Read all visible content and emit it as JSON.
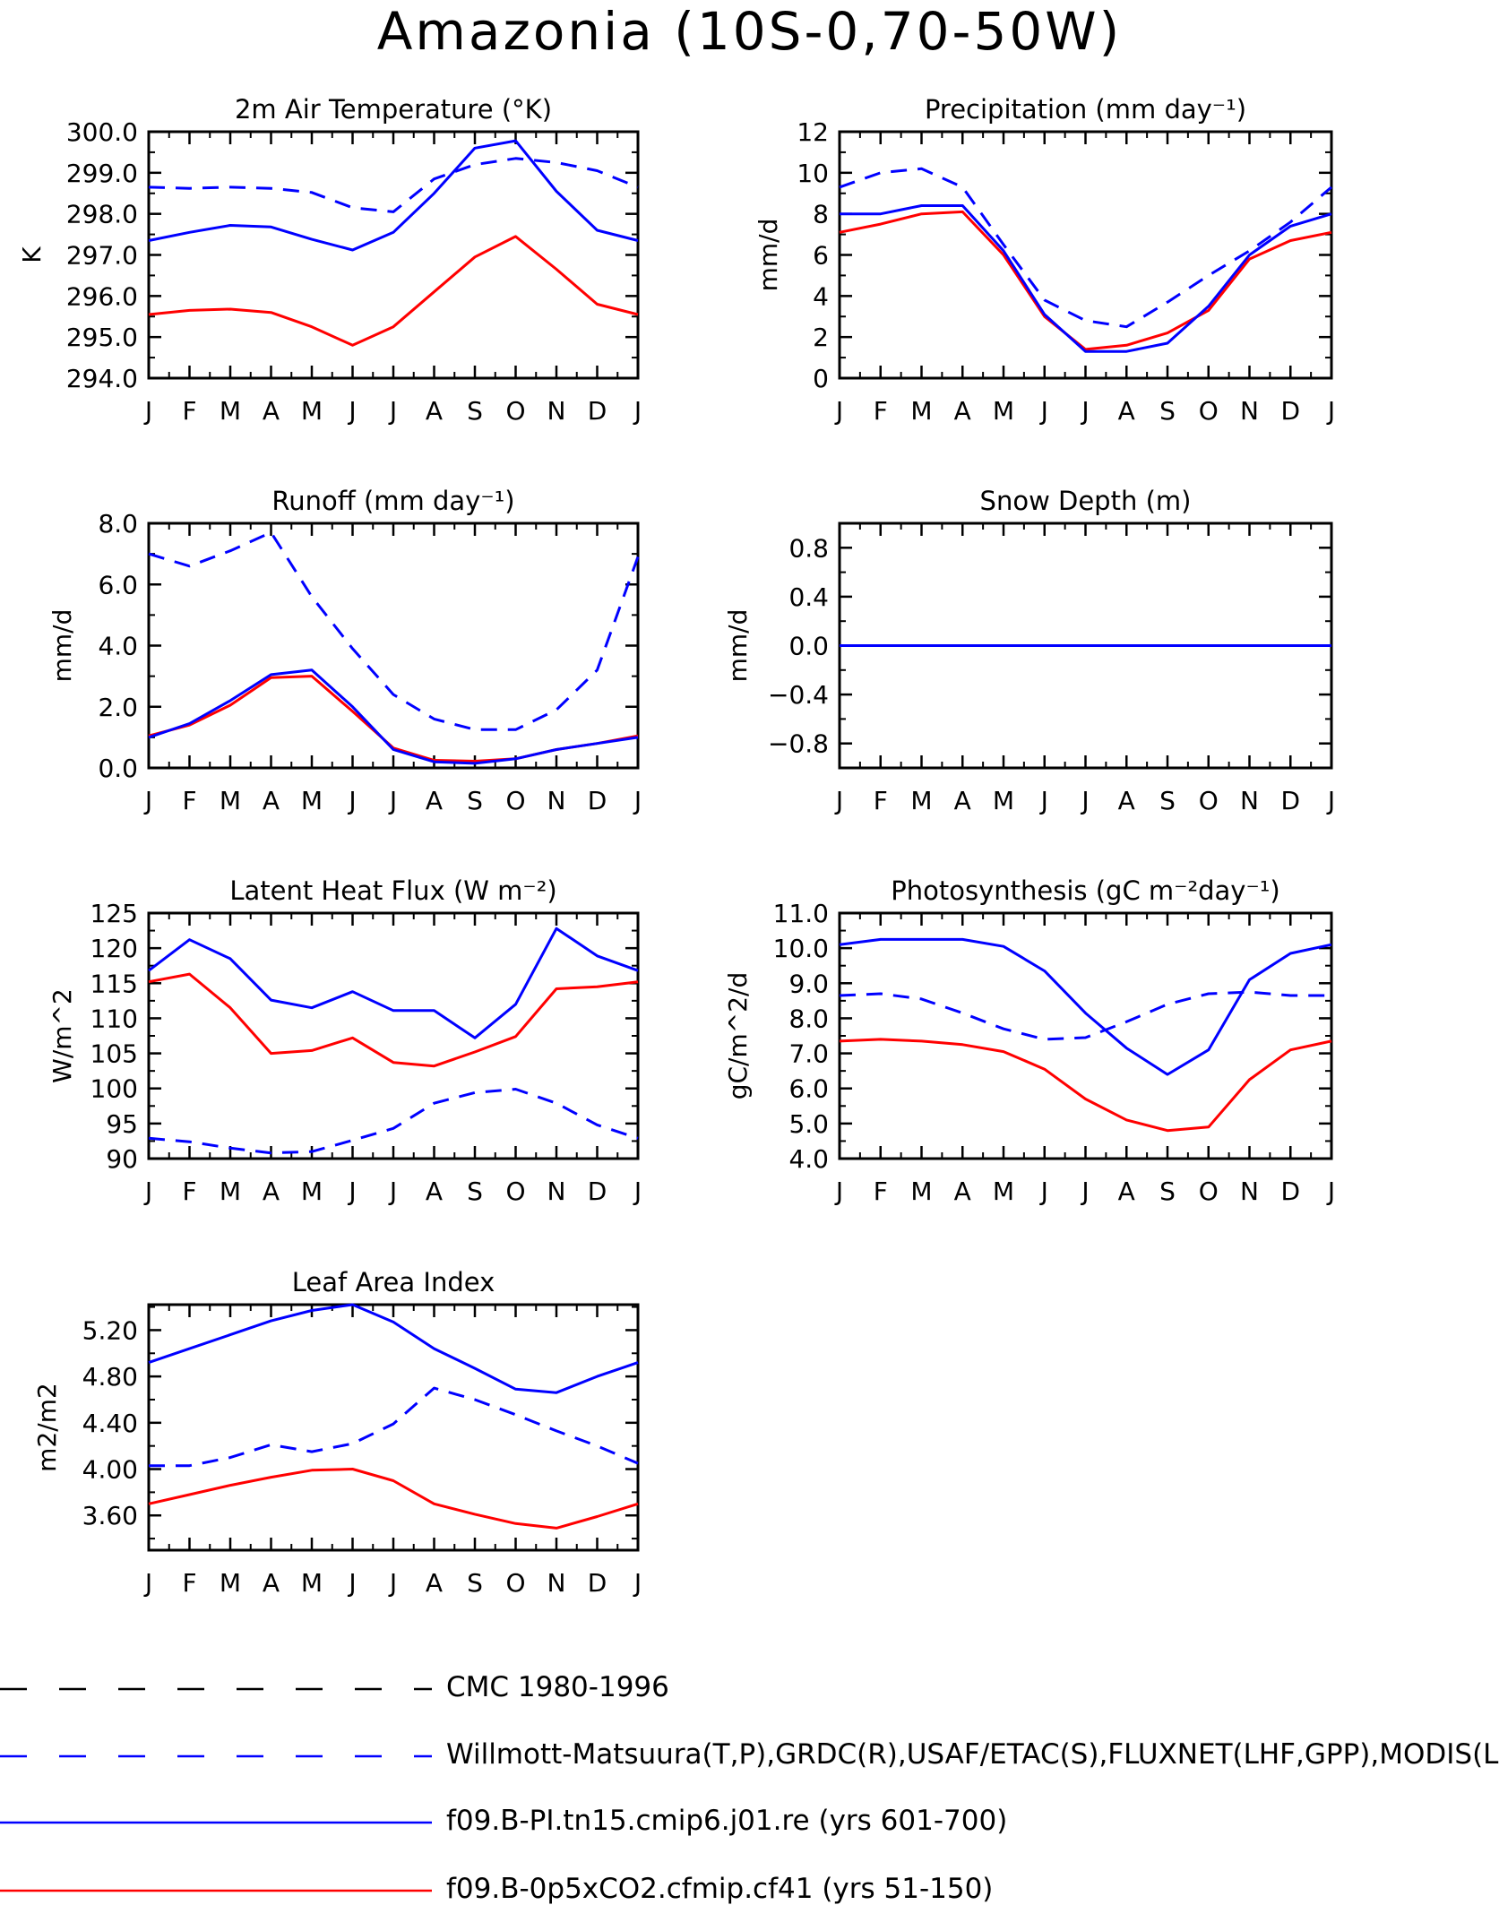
{
  "title": "Amazonia (10S-0,70-50W)",
  "months": [
    "J",
    "F",
    "M",
    "A",
    "M",
    "J",
    "J",
    "A",
    "S",
    "O",
    "N",
    "D",
    "J"
  ],
  "colors": {
    "red": "#ff0000",
    "blue": "#0000ff",
    "black": "#000000"
  },
  "legend": [
    {
      "label": "CMC 1980-1996",
      "color": "#000000",
      "dash": true
    },
    {
      "label": "Willmott-Matsuura(T,P),GRDC(R),USAF/ETAC(S),FLUXNET(LHF,GPP),MODIS(L",
      "color": "#0000ff",
      "dash": true
    },
    {
      "label": "f09.B-PI.tn15.cmip6.j01.re (yrs 601-700)",
      "color": "#0000ff",
      "dash": false
    },
    {
      "label": "f09.B-0p5xCO2.cfmip.cf41 (yrs 51-150)",
      "color": "#ff0000",
      "dash": false
    }
  ],
  "chart_data": [
    {
      "type": "line",
      "title": "2m Air Temperature (°K)",
      "ylabel": "K",
      "ylim": [
        294,
        300
      ],
      "yticks": [
        294,
        295,
        296,
        297,
        298,
        299,
        300
      ],
      "ytick_labels": [
        "294.0",
        "295.0",
        "296.0",
        "297.0",
        "298.0",
        "299.0",
        "300.0"
      ],
      "categories": [
        "J",
        "F",
        "M",
        "A",
        "M",
        "J",
        "J",
        "A",
        "S",
        "O",
        "N",
        "D",
        "J"
      ],
      "series": [
        {
          "name": "f09.B-0p5xCO2.cfmip.cf41 (yrs 51-150)",
          "color": "#ff0000",
          "dash": false,
          "values": [
            295.55,
            295.65,
            295.68,
            295.6,
            295.25,
            294.8,
            295.25,
            296.1,
            296.95,
            297.45,
            296.65,
            295.8,
            295.55
          ]
        },
        {
          "name": "f09.B-PI.tn15.cmip6.j01.re (yrs 601-700)",
          "color": "#0000ff",
          "dash": false,
          "values": [
            297.35,
            297.55,
            297.72,
            297.68,
            297.38,
            297.12,
            297.55,
            298.5,
            299.6,
            299.78,
            298.55,
            297.6,
            297.35
          ]
        },
        {
          "name": "Willmott-Matsuura(T,P),GRDC(R),USAF/ETAC(S),FLUXNET(LHF,GPP),MODIS(L",
          "color": "#0000ff",
          "dash": true,
          "values": [
            298.65,
            298.62,
            298.65,
            298.62,
            298.52,
            298.15,
            298.05,
            298.85,
            299.2,
            299.35,
            299.25,
            299.05,
            298.65
          ]
        }
      ]
    },
    {
      "type": "line",
      "title": "Precipitation (mm day⁻¹)",
      "ylabel": "mm/d",
      "ylim": [
        0,
        12
      ],
      "yticks": [
        0,
        2,
        4,
        6,
        8,
        10,
        12
      ],
      "ytick_labels": [
        "0",
        "2",
        "4",
        "6",
        "8",
        "10",
        "12"
      ],
      "categories": [
        "J",
        "F",
        "M",
        "A",
        "M",
        "J",
        "J",
        "A",
        "S",
        "O",
        "N",
        "D",
        "J"
      ],
      "series": [
        {
          "name": "f09.B-0p5xCO2.cfmip.cf41 (yrs 51-150)",
          "color": "#ff0000",
          "dash": false,
          "values": [
            7.1,
            7.5,
            8.0,
            8.1,
            6.0,
            3.0,
            1.4,
            1.6,
            2.2,
            3.3,
            5.8,
            6.7,
            7.1
          ]
        },
        {
          "name": "f09.B-PI.tn15.cmip6.j01.re (yrs 601-700)",
          "color": "#0000ff",
          "dash": false,
          "values": [
            8.0,
            8.0,
            8.4,
            8.4,
            6.2,
            3.1,
            1.3,
            1.3,
            1.7,
            3.5,
            6.0,
            7.4,
            8.0
          ]
        },
        {
          "name": "Willmott-Matsuura(T,P),GRDC(R),USAF/ETAC(S),FLUXNET(LHF,GPP),MODIS(L",
          "color": "#0000ff",
          "dash": true,
          "values": [
            9.3,
            10.0,
            10.2,
            9.3,
            6.5,
            3.8,
            2.8,
            2.5,
            3.7,
            5.0,
            6.2,
            7.6,
            9.3
          ]
        }
      ]
    },
    {
      "type": "line",
      "title": "Runoff (mm day⁻¹)",
      "ylabel": "mm/d",
      "ylim": [
        0,
        8
      ],
      "yticks": [
        0,
        2,
        4,
        6,
        8
      ],
      "ytick_labels": [
        "0.0",
        "2.0",
        "4.0",
        "6.0",
        "8.0"
      ],
      "categories": [
        "J",
        "F",
        "M",
        "A",
        "M",
        "J",
        "J",
        "A",
        "S",
        "O",
        "N",
        "D",
        "J"
      ],
      "series": [
        {
          "name": "f09.B-0p5xCO2.cfmip.cf41 (yrs 51-150)",
          "color": "#ff0000",
          "dash": false,
          "values": [
            1.05,
            1.4,
            2.05,
            2.95,
            3.0,
            1.85,
            0.65,
            0.25,
            0.22,
            0.3,
            0.6,
            0.8,
            1.05
          ]
        },
        {
          "name": "f09.B-PI.tn15.cmip6.j01.re (yrs 601-700)",
          "color": "#0000ff",
          "dash": false,
          "values": [
            1.0,
            1.45,
            2.2,
            3.05,
            3.2,
            2.0,
            0.6,
            0.2,
            0.15,
            0.3,
            0.6,
            0.8,
            1.0
          ]
        },
        {
          "name": "Willmott-Matsuura(T,P),GRDC(R),USAF/ETAC(S),FLUXNET(LHF,GPP),MODIS(L",
          "color": "#0000ff",
          "dash": true,
          "values": [
            7.0,
            6.6,
            7.1,
            7.7,
            5.6,
            3.9,
            2.4,
            1.6,
            1.25,
            1.25,
            1.9,
            3.2,
            6.9
          ]
        }
      ]
    },
    {
      "type": "line",
      "title": "Snow Depth (m)",
      "ylabel": "mm/d",
      "ylim": [
        -1,
        1
      ],
      "yticks": [
        -0.8,
        -0.4,
        0,
        0.4,
        0.8
      ],
      "ytick_labels": [
        "−0.8",
        "−0.4",
        "0.0",
        "0.4",
        "0.8"
      ],
      "categories": [
        "J",
        "F",
        "M",
        "A",
        "M",
        "J",
        "J",
        "A",
        "S",
        "O",
        "N",
        "D",
        "J"
      ],
      "series": [
        {
          "name": "f09.B-0p5xCO2.cfmip.cf41 (yrs 51-150)",
          "color": "#ff0000",
          "dash": false,
          "values": [
            0,
            0,
            0,
            0,
            0,
            0,
            0,
            0,
            0,
            0,
            0,
            0,
            0
          ]
        },
        {
          "name": "f09.B-PI.tn15.cmip6.j01.re (yrs 601-700)",
          "color": "#0000ff",
          "dash": false,
          "values": [
            0,
            0,
            0,
            0,
            0,
            0,
            0,
            0,
            0,
            0,
            0,
            0,
            0
          ]
        },
        {
          "name": "Willmott-Matsuura(T,P),GRDC(R),USAF/ETAC(S),FLUXNET(LHF,GPP),MODIS(L",
          "color": "#0000ff",
          "dash": true,
          "values": [
            0,
            0,
            0,
            0,
            0,
            0,
            0,
            0,
            0,
            0,
            0,
            0,
            0
          ]
        }
      ]
    },
    {
      "type": "line",
      "title": "Latent Heat Flux (W m⁻²)",
      "ylabel": "W/m^2",
      "ylim": [
        90,
        125
      ],
      "yticks": [
        90,
        95,
        100,
        105,
        110,
        115,
        120,
        125
      ],
      "ytick_labels": [
        "90",
        "95",
        "100",
        "105",
        "110",
        "115",
        "120",
        "125"
      ],
      "categories": [
        "J",
        "F",
        "M",
        "A",
        "M",
        "J",
        "J",
        "A",
        "S",
        "O",
        "N",
        "D",
        "J"
      ],
      "series": [
        {
          "name": "f09.B-0p5xCO2.cfmip.cf41 (yrs 51-150)",
          "color": "#ff0000",
          "dash": false,
          "values": [
            115.2,
            116.3,
            111.5,
            105.0,
            105.4,
            107.2,
            103.7,
            103.2,
            105.2,
            107.4,
            114.2,
            114.5,
            115.2
          ]
        },
        {
          "name": "f09.B-PI.tn15.cmip6.j01.re (yrs 601-700)",
          "color": "#0000ff",
          "dash": false,
          "values": [
            116.8,
            121.2,
            118.5,
            112.6,
            111.5,
            113.8,
            111.1,
            111.1,
            107.2,
            112.0,
            122.8,
            118.9,
            116.8
          ]
        },
        {
          "name": "Willmott-Matsuura(T,P),GRDC(R),USAF/ETAC(S),FLUXNET(LHF,GPP),MODIS(L",
          "color": "#0000ff",
          "dash": true,
          "values": [
            92.9,
            92.4,
            91.5,
            90.8,
            91.0,
            92.6,
            94.3,
            97.9,
            99.4,
            99.9,
            97.9,
            94.8,
            92.9
          ]
        }
      ]
    },
    {
      "type": "line",
      "title": "Photosynthesis (gC m⁻²day⁻¹)",
      "ylabel": "gC/m^2/d",
      "ylim": [
        4,
        11
      ],
      "yticks": [
        4,
        5,
        6,
        7,
        8,
        9,
        10,
        11
      ],
      "ytick_labels": [
        "4.0",
        "5.0",
        "6.0",
        "7.0",
        "8.0",
        "9.0",
        "10.0",
        "11.0"
      ],
      "categories": [
        "J",
        "F",
        "M",
        "A",
        "M",
        "J",
        "J",
        "A",
        "S",
        "O",
        "N",
        "D",
        "J"
      ],
      "series": [
        {
          "name": "f09.B-0p5xCO2.cfmip.cf41 (yrs 51-150)",
          "color": "#ff0000",
          "dash": false,
          "values": [
            7.35,
            7.4,
            7.35,
            7.25,
            7.05,
            6.55,
            5.7,
            5.1,
            4.8,
            4.9,
            6.25,
            7.1,
            7.35
          ]
        },
        {
          "name": "f09.B-PI.tn15.cmip6.j01.re (yrs 601-700)",
          "color": "#0000ff",
          "dash": false,
          "values": [
            10.1,
            10.25,
            10.25,
            10.25,
            10.05,
            9.35,
            8.15,
            7.15,
            6.4,
            7.1,
            9.1,
            9.85,
            10.1
          ]
        },
        {
          "name": "Willmott-Matsuura(T,P),GRDC(R),USAF/ETAC(S),FLUXNET(LHF,GPP),MODIS(L",
          "color": "#0000ff",
          "dash": true,
          "values": [
            8.65,
            8.7,
            8.55,
            8.15,
            7.7,
            7.4,
            7.45,
            7.9,
            8.4,
            8.7,
            8.75,
            8.65,
            8.65
          ]
        }
      ]
    },
    {
      "type": "line",
      "title": "Leaf Area Index",
      "ylabel": "m2/m2",
      "ylim": [
        3.3,
        5.42
      ],
      "yticks": [
        3.6,
        4.0,
        4.4,
        4.8,
        5.2
      ],
      "ytick_labels": [
        "3.60",
        "4.00",
        "4.40",
        "4.80",
        "5.20"
      ],
      "categories": [
        "J",
        "F",
        "M",
        "A",
        "M",
        "J",
        "J",
        "A",
        "S",
        "O",
        "N",
        "D",
        "J"
      ],
      "series": [
        {
          "name": "f09.B-0p5xCO2.cfmip.cf41 (yrs 51-150)",
          "color": "#ff0000",
          "dash": false,
          "values": [
            3.7,
            3.78,
            3.86,
            3.93,
            3.99,
            4.0,
            3.9,
            3.7,
            3.61,
            3.53,
            3.49,
            3.59,
            3.7
          ]
        },
        {
          "name": "f09.B-PI.tn15.cmip6.j01.re (yrs 601-700)",
          "color": "#0000ff",
          "dash": false,
          "values": [
            4.92,
            5.04,
            5.16,
            5.28,
            5.37,
            5.42,
            5.27,
            5.04,
            4.87,
            4.69,
            4.66,
            4.8,
            4.92
          ]
        },
        {
          "name": "Willmott-Matsuura(T,P),GRDC(R),USAF/ETAC(S),FLUXNET(LHF,GPP),MODIS(L",
          "color": "#0000ff",
          "dash": true,
          "values": [
            4.03,
            4.03,
            4.1,
            4.21,
            4.15,
            4.22,
            4.39,
            4.7,
            4.6,
            4.47,
            4.33,
            4.2,
            4.05
          ]
        }
      ]
    }
  ]
}
